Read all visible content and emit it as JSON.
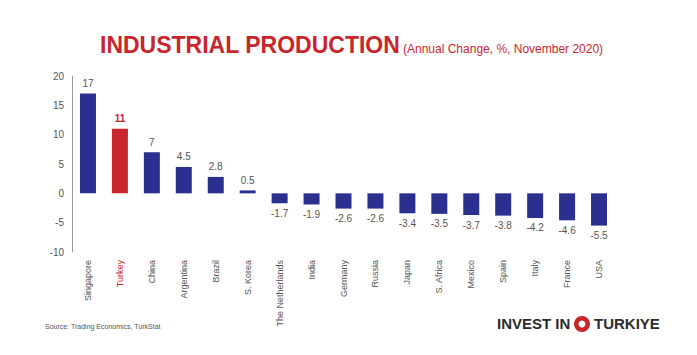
{
  "chart_data": {
    "type": "bar",
    "title": "INDUSTRIAL PRODUCTION",
    "subtitle": "(Annual Change, %, November 2020)",
    "source": "Source: Trading Economics, TurkStat",
    "logo_text": [
      "INVEST IN",
      "TURKIYE"
    ],
    "categories": [
      "Singapore",
      "Turkey",
      "China",
      "Argentina",
      "Brazil",
      "S. Korea",
      "The Netherlands",
      "India",
      "Germany",
      "Russia",
      "Japan",
      "S. Africa",
      "Mexico",
      "Spain",
      "Italy",
      "France",
      "USA"
    ],
    "values": [
      17,
      11,
      7,
      4.5,
      2.8,
      0.5,
      -1.7,
      -1.9,
      -2.6,
      -2.6,
      -3.4,
      -3.5,
      -3.7,
      -3.8,
      -4.2,
      -4.6,
      -5.5
    ],
    "colors": [
      "#2b2f8e",
      "#c9252c",
      "#2b2f8e",
      "#2b2f8e",
      "#2b2f8e",
      "#2b2f8e",
      "#2b2f8e",
      "#2b2f8e",
      "#2b2f8e",
      "#2b2f8e",
      "#2b2f8e",
      "#2b2f8e",
      "#2b2f8e",
      "#2b2f8e",
      "#2b2f8e",
      "#2b2f8e",
      "#2b2f8e"
    ],
    "ylim": [
      -10,
      20
    ],
    "yticks": [
      -10,
      -5,
      0,
      5,
      10,
      15,
      20
    ],
    "grid": false,
    "data_labels": true
  }
}
